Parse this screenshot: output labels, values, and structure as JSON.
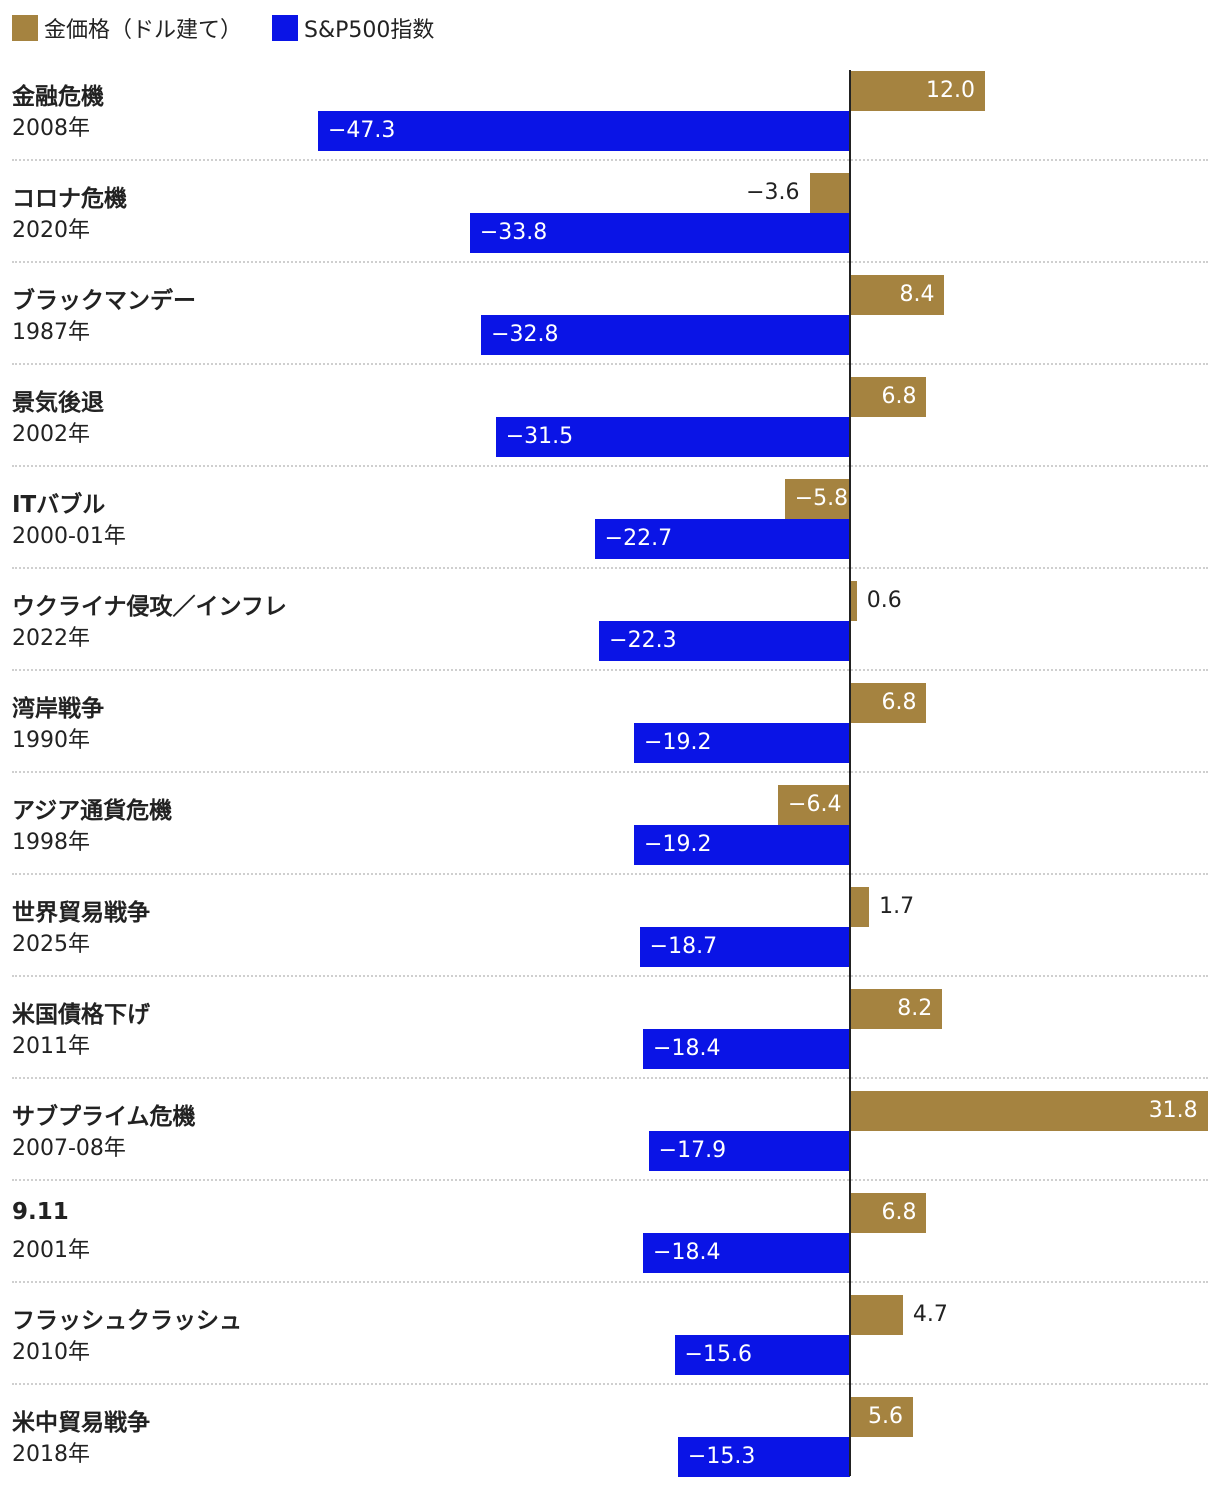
{
  "legend": {
    "gold_label": "金価格（ドル建て）",
    "sp_label": "S&P500指数"
  },
  "colors": {
    "gold": "#a58340",
    "sp500": "#0a14e6",
    "text": "#222222",
    "label_on_bar": "#ffffff"
  },
  "chart_data": {
    "type": "bar",
    "orientation": "horizontal",
    "title": "",
    "xlabel": "",
    "ylabel": "",
    "xlim": [
      -47.3,
      31.8
    ],
    "grid": false,
    "legend_position": "top-left",
    "series": [
      {
        "name": "金価格（ドル建て）",
        "color": "#a58340",
        "values": [
          12.0,
          -3.6,
          8.4,
          6.8,
          -5.8,
          0.6,
          6.8,
          -6.4,
          1.7,
          8.2,
          31.8,
          6.8,
          4.7,
          5.6
        ]
      },
      {
        "name": "S&P500指数",
        "color": "#0a14e6",
        "values": [
          -47.3,
          -33.8,
          -32.8,
          -31.5,
          -22.7,
          -22.3,
          -19.2,
          -19.2,
          -18.7,
          -18.4,
          -17.9,
          -18.4,
          -15.6,
          -15.3
        ]
      }
    ],
    "categories": [
      {
        "name": "金融危機",
        "period": "2008年",
        "gold": "12.0",
        "sp500": "−47.3"
      },
      {
        "name": "コロナ危機",
        "period": "2020年",
        "gold": "−3.6",
        "sp500": "−33.8"
      },
      {
        "name": "ブラックマンデー",
        "period": "1987年",
        "gold": "8.4",
        "sp500": "−32.8"
      },
      {
        "name": "景気後退",
        "period": "2002年",
        "gold": "6.8",
        "sp500": "−31.5"
      },
      {
        "name": "ITバブル",
        "period": "2000-01年",
        "gold": "−5.8",
        "sp500": "−22.7"
      },
      {
        "name": "ウクライナ侵攻／インフレ",
        "period": "2022年",
        "gold": "0.6",
        "sp500": "−22.3"
      },
      {
        "name": "湾岸戦争",
        "period": "1990年",
        "gold": "6.8",
        "sp500": "−19.2"
      },
      {
        "name": "アジア通貨危機",
        "period": "1998年",
        "gold": "−6.4",
        "sp500": "−19.2"
      },
      {
        "name": "世界貿易戦争",
        "period": "2025年",
        "gold": "1.7",
        "sp500": "−18.7"
      },
      {
        "name": "米国債格下げ",
        "period": "2011年",
        "gold": "8.2",
        "sp500": "−18.4"
      },
      {
        "name": "サブプライム危機",
        "period": "2007-08年",
        "gold": "31.8",
        "sp500": "−17.9"
      },
      {
        "name": "9.11",
        "period": "2001年",
        "gold": "6.8",
        "sp500": "−18.4"
      },
      {
        "name": "フラッシュクラッシュ",
        "period": "2010年",
        "gold": "4.7",
        "sp500": "−15.6"
      },
      {
        "name": "米中貿易戦争",
        "period": "2018年",
        "gold": "5.6",
        "sp500": "−15.3"
      }
    ]
  }
}
